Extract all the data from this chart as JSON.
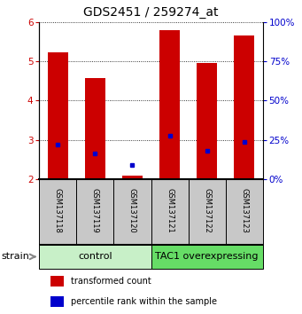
{
  "title": "GDS2451 / 259274_at",
  "samples": [
    "GSM137118",
    "GSM137119",
    "GSM137120",
    "GSM137121",
    "GSM137122",
    "GSM137123"
  ],
  "red_values": [
    5.22,
    4.57,
    2.08,
    5.8,
    4.95,
    5.65
  ],
  "blue_values": [
    2.87,
    2.65,
    2.35,
    3.1,
    2.72,
    2.95
  ],
  "ylim_left": [
    2,
    6
  ],
  "ylim_right": [
    0,
    100
  ],
  "yticks_left": [
    2,
    3,
    4,
    5,
    6
  ],
  "yticks_right": [
    0,
    25,
    50,
    75,
    100
  ],
  "groups": [
    {
      "label": "control",
      "start": 0,
      "end": 3,
      "color": "#c8f0c8"
    },
    {
      "label": "TAC1 overexpressing",
      "start": 3,
      "end": 6,
      "color": "#66dd66"
    }
  ],
  "bar_color": "#cc0000",
  "blue_color": "#0000cc",
  "bar_bottom": 2,
  "bar_width": 0.55,
  "legend_red": "transformed count",
  "legend_blue": "percentile rank within the sample",
  "strain_label": "strain",
  "bg_label_area": "#c8c8c8",
  "title_fontsize": 10,
  "tick_fontsize": 7.5,
  "sample_fontsize": 6,
  "group_fontsize": 8,
  "legend_fontsize": 7
}
